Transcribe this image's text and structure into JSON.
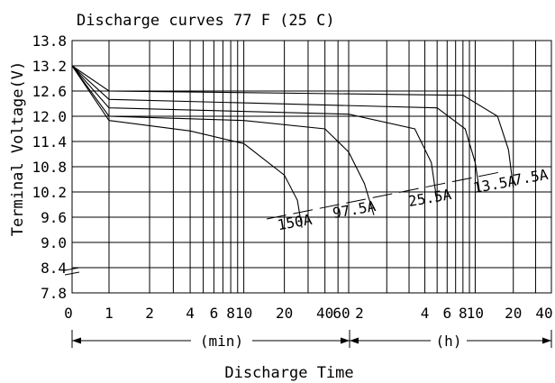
{
  "chart_data": {
    "type": "line",
    "title": "Discharge curves 77 F (25 C)",
    "ylabel": "Terminal Voltage(V)",
    "xlabel": "Discharge Time",
    "x_scale": "log",
    "ylim": [
      7.8,
      13.8
    ],
    "y_ticks": [
      "13.8",
      "13.2",
      "12.6",
      "12.0",
      "11.4",
      "10.8",
      "10.2",
      "9.6",
      "9.0",
      "8.4",
      "7.8"
    ],
    "x_ticks": [
      {
        "label": "0",
        "minutes": null
      },
      {
        "label": "1",
        "minutes": 1
      },
      {
        "label": "2",
        "minutes": 2
      },
      {
        "label": "4",
        "minutes": 4
      },
      {
        "label": "6",
        "minutes": 6
      },
      {
        "label": "8",
        "minutes": 8
      },
      {
        "label": "10",
        "minutes": 10
      },
      {
        "label": "20",
        "minutes": 20
      },
      {
        "label": "40",
        "minutes": 40
      },
      {
        "label": "60",
        "minutes": 60
      },
      {
        "label": "2",
        "minutes": 120
      },
      {
        "label": "4",
        "minutes": 240
      },
      {
        "label": "6",
        "minutes": 360
      },
      {
        "label": "8",
        "minutes": 480
      },
      {
        "label": "10",
        "minutes": 600
      },
      {
        "label": "20",
        "minutes": 1200
      },
      {
        "label": "40",
        "minutes": 2400
      }
    ],
    "grid": true,
    "units": {
      "left": "(min)",
      "right": "(h)"
    },
    "series": [
      {
        "name": "150A",
        "points": [
          [
            0,
            13.2
          ],
          [
            1,
            11.9
          ],
          [
            4,
            11.65
          ],
          [
            10,
            11.35
          ],
          [
            20,
            10.6
          ],
          [
            25,
            10.0
          ],
          [
            27,
            9.35
          ]
        ]
      },
      {
        "name": "97.5A",
        "points": [
          [
            0,
            13.2
          ],
          [
            1,
            12.0
          ],
          [
            10,
            11.9
          ],
          [
            40,
            11.7
          ],
          [
            60,
            11.15
          ],
          [
            80,
            10.4
          ],
          [
            95,
            9.65
          ]
        ]
      },
      {
        "name": "25.5A",
        "points": [
          [
            0,
            13.2
          ],
          [
            1,
            12.2
          ],
          [
            60,
            12.05
          ],
          [
            200,
            11.7
          ],
          [
            270,
            10.9
          ],
          [
            300,
            9.95
          ]
        ]
      },
      {
        "name": "13.5A",
        "points": [
          [
            0,
            13.2
          ],
          [
            1,
            12.4
          ],
          [
            300,
            12.2
          ],
          [
            500,
            11.7
          ],
          [
            600,
            10.9
          ],
          [
            650,
            10.2
          ]
        ]
      },
      {
        "name": "7.5A",
        "points": [
          [
            0,
            13.2
          ],
          [
            1,
            12.6
          ],
          [
            480,
            12.5
          ],
          [
            900,
            12.0
          ],
          [
            1100,
            11.2
          ],
          [
            1200,
            10.3
          ]
        ]
      }
    ]
  }
}
